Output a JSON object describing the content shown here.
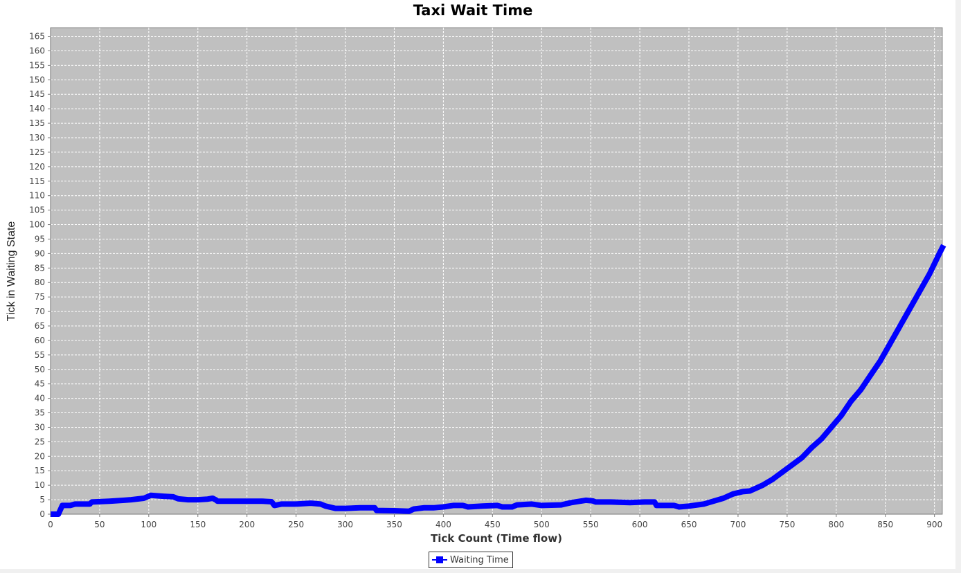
{
  "chart_data": {
    "type": "line",
    "title": "Taxi Wait Time",
    "xlabel": "Tick Count (Time flow)",
    "ylabel": "Tick in Waiting State",
    "xlim": [
      0,
      908
    ],
    "ylim": [
      0,
      168
    ],
    "x_ticks": [
      0,
      50,
      100,
      150,
      200,
      250,
      300,
      350,
      400,
      450,
      500,
      550,
      600,
      650,
      700,
      750,
      800,
      850,
      900
    ],
    "y_ticks": [
      0,
      5,
      10,
      15,
      20,
      25,
      30,
      35,
      40,
      45,
      50,
      55,
      60,
      65,
      70,
      75,
      80,
      85,
      90,
      95,
      100,
      105,
      110,
      115,
      120,
      125,
      130,
      135,
      140,
      145,
      150,
      155,
      160,
      165
    ],
    "grid": true,
    "legend_position": "bottom",
    "colors": {
      "plot_background": "#c0c0c0",
      "series": "#0000ff",
      "grid": "#ffffff"
    },
    "series": [
      {
        "name": "Waiting Time",
        "points": [
          [
            3,
            0
          ],
          [
            8,
            0
          ],
          [
            12,
            3
          ],
          [
            20,
            3
          ],
          [
            25,
            3.5
          ],
          [
            40,
            3.5
          ],
          [
            42,
            4.2
          ],
          [
            60,
            4.5
          ],
          [
            75,
            4.8
          ],
          [
            82,
            5
          ],
          [
            95,
            5.5
          ],
          [
            102,
            6.5
          ],
          [
            115,
            6.2
          ],
          [
            125,
            6
          ],
          [
            130,
            5.3
          ],
          [
            140,
            5
          ],
          [
            150,
            5
          ],
          [
            160,
            5.2
          ],
          [
            165,
            5.5
          ],
          [
            168,
            5
          ],
          [
            170,
            4.5
          ],
          [
            185,
            4.5
          ],
          [
            200,
            4.5
          ],
          [
            215,
            4.5
          ],
          [
            225,
            4.3
          ],
          [
            228,
            3
          ],
          [
            235,
            3.5
          ],
          [
            250,
            3.5
          ],
          [
            265,
            3.8
          ],
          [
            275,
            3.5
          ],
          [
            280,
            2.8
          ],
          [
            290,
            2
          ],
          [
            300,
            2
          ],
          [
            315,
            2.2
          ],
          [
            330,
            2.2
          ],
          [
            332,
            1.3
          ],
          [
            350,
            1.2
          ],
          [
            365,
            1
          ],
          [
            370,
            1.8
          ],
          [
            380,
            2.2
          ],
          [
            390,
            2.2
          ],
          [
            400,
            2.5
          ],
          [
            410,
            3
          ],
          [
            420,
            3
          ],
          [
            425,
            2.5
          ],
          [
            440,
            2.8
          ],
          [
            455,
            3
          ],
          [
            460,
            2.5
          ],
          [
            470,
            2.5
          ],
          [
            475,
            3.2
          ],
          [
            490,
            3.5
          ],
          [
            500,
            3
          ],
          [
            520,
            3.2
          ],
          [
            530,
            4
          ],
          [
            545,
            4.8
          ],
          [
            552,
            4.6
          ],
          [
            555,
            4.2
          ],
          [
            570,
            4.2
          ],
          [
            590,
            4
          ],
          [
            605,
            4.2
          ],
          [
            615,
            4.2
          ],
          [
            617,
            3
          ],
          [
            635,
            3
          ],
          [
            640,
            2.5
          ],
          [
            650,
            2.8
          ],
          [
            665,
            3.5
          ],
          [
            675,
            4.5
          ],
          [
            685,
            5.5
          ],
          [
            695,
            7
          ],
          [
            705,
            7.8
          ],
          [
            712,
            8
          ],
          [
            725,
            10
          ],
          [
            735,
            12
          ],
          [
            745,
            14.5
          ],
          [
            755,
            17
          ],
          [
            765,
            19.5
          ],
          [
            775,
            23
          ],
          [
            785,
            26
          ],
          [
            795,
            30
          ],
          [
            805,
            34
          ],
          [
            815,
            39
          ],
          [
            825,
            43
          ],
          [
            835,
            48
          ],
          [
            845,
            53
          ],
          [
            855,
            59
          ],
          [
            865,
            65
          ],
          [
            875,
            71
          ],
          [
            885,
            77
          ],
          [
            895,
            83
          ],
          [
            905,
            90
          ],
          [
            908,
            92
          ]
        ]
      }
    ]
  }
}
